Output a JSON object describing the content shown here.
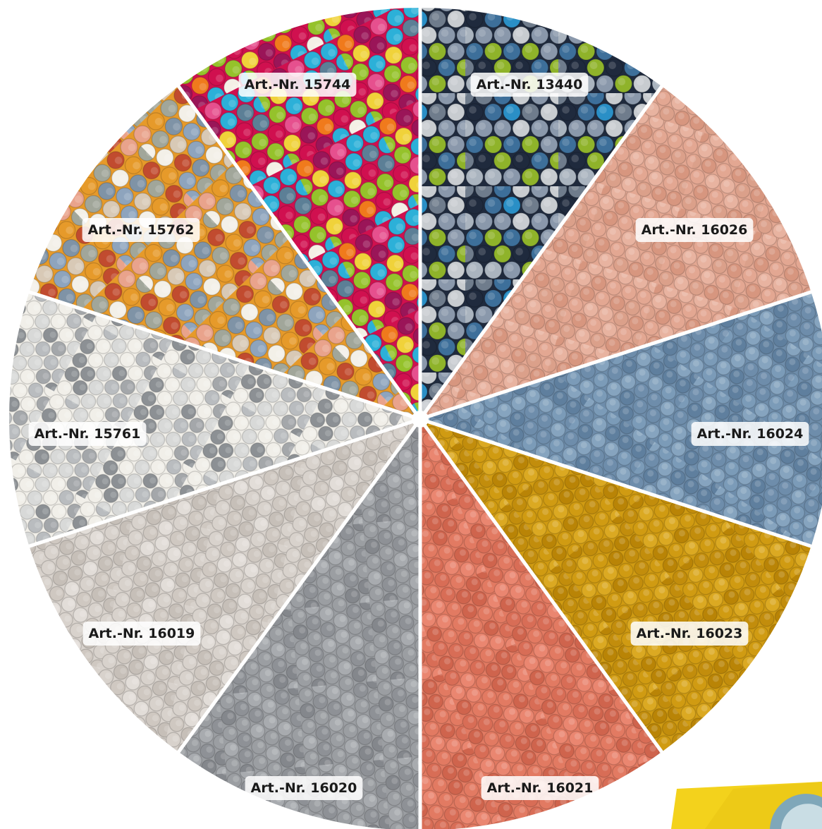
{
  "sectors": [
    {
      "label": "Art.-Nr. 13440",
      "palette": [
        "#1f2a3d",
        "#8a98ab",
        "#aab4bf",
        "#2a8fc6",
        "#8fb32a",
        "#6f7c8c",
        "#c8ccd0",
        "#3d6f9a"
      ]
    },
    {
      "label": "Art.-Nr. 16026",
      "palette": [
        "#e3a792",
        "#dba08a",
        "#e8b3a0",
        "#d7967f"
      ]
    },
    {
      "label": "Art.-Nr. 16024",
      "palette": [
        "#6e8dab",
        "#7b9bb8",
        "#5f7f9e",
        "#86a4bf"
      ]
    },
    {
      "label": "Art.-Nr. 16023",
      "palette": [
        "#d09b12",
        "#c28d0c",
        "#dba922",
        "#b98406"
      ]
    },
    {
      "label": "Art.-Nr. 16021",
      "palette": [
        "#e27a62",
        "#d86d56",
        "#ea8670",
        "#cf644d"
      ]
    },
    {
      "label": "Art.-Nr. 16020",
      "palette": [
        "#9b9ea2",
        "#8e9196",
        "#a8abaf",
        "#84878c"
      ]
    },
    {
      "label": "Art.-Nr. 16019",
      "palette": [
        "#d8d2cc",
        "#cfc8c1",
        "#e2ddd8",
        "#c6bfb8"
      ]
    },
    {
      "label": "Art.-Nr. 15761",
      "palette": [
        "#f1efe9",
        "#b9bcbf",
        "#8c9094",
        "#d8d9d8",
        "#a4a7aa"
      ]
    },
    {
      "label": "Art.-Nr. 15762",
      "palette": [
        "#e69a2a",
        "#e9a38c",
        "#8ea4bd",
        "#d8c9b6",
        "#f3f0e8",
        "#a1a69a",
        "#c14b2f",
        "#7f93a6"
      ]
    },
    {
      "label": "Art.-Nr. 15744",
      "palette": [
        "#d0104f",
        "#2cb0d8",
        "#f07a1c",
        "#95c22b",
        "#9a1558",
        "#2a2a3e",
        "#f4f0e6",
        "#f0d23a",
        "#e6508e",
        "#5c7f96"
      ]
    }
  ]
}
